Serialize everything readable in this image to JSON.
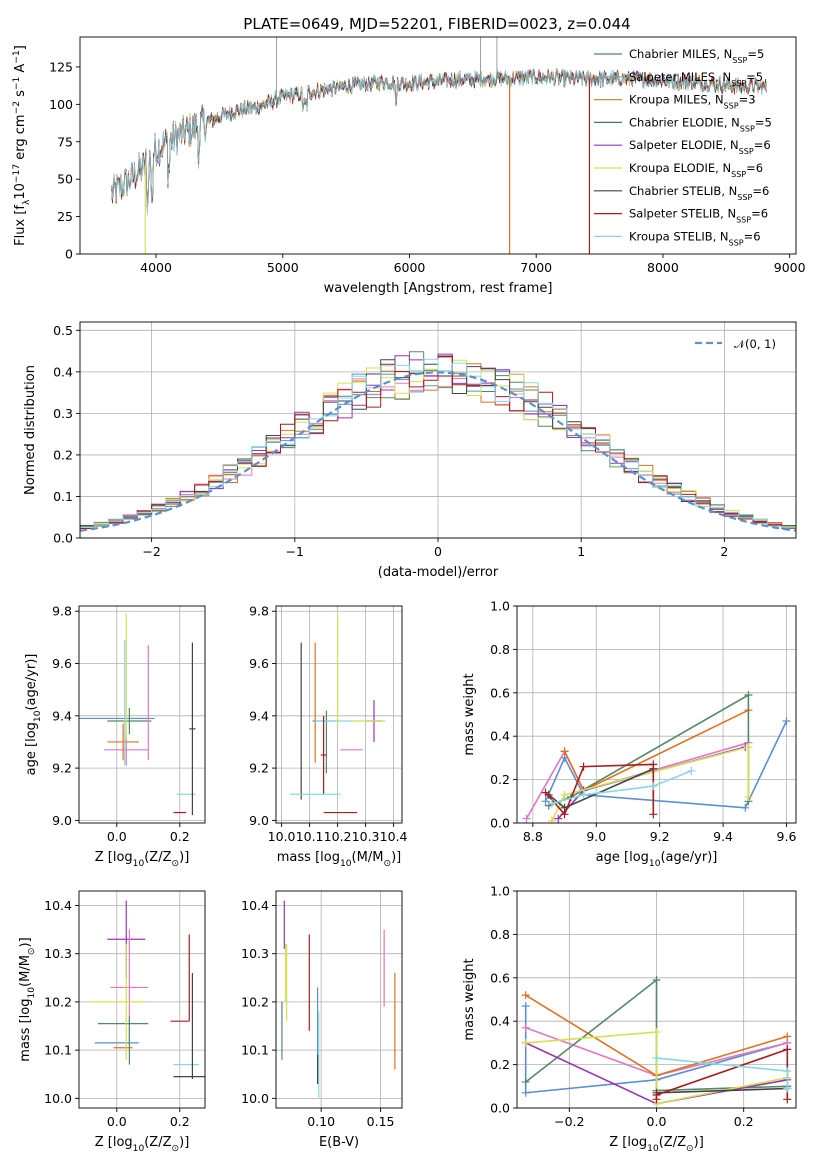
{
  "figure": {
    "title": "PLATE=0649, MJD=52201, FIBERID=0023, z=0.044"
  },
  "colors": {
    "chabrier_miles": "#5b8fd0",
    "salpeter_miles": "#e377c2",
    "kroupa_miles": "#e07020",
    "chabrier_elodie": "#558866",
    "salpeter_elodie": "#9a35b5",
    "kroupa_elodie": "#d5e050",
    "chabrier_stelib": "#444444",
    "salpeter_stelib": "#aa1c1c",
    "kroupa_stelib": "#88d8e0"
  },
  "legend_spectrum": [
    {
      "text": "Chabrier MILES, N",
      "sub": "SSP",
      "tail": "=5",
      "color": "#558866"
    },
    {
      "text": "Salpeter MILES, N",
      "sub": "SSP",
      "tail": "=5",
      "color": "#999999"
    },
    {
      "text": "Kroupa MILES, N",
      "sub": "SSP",
      "tail": "=3",
      "color": "#cc8a3a"
    },
    {
      "text": "Chabrier ELODIE, N",
      "sub": "SSP",
      "tail": "=5",
      "color": "#44708a"
    },
    {
      "text": "Salpeter ELODIE, N",
      "sub": "SSP",
      "tail": "=6",
      "color": "#9a35b5"
    },
    {
      "text": "Kroupa ELODIE, N",
      "sub": "SSP",
      "tail": "=6",
      "color": "#d5e050"
    },
    {
      "text": "Chabrier STELIB, N",
      "sub": "SSP",
      "tail": "=6",
      "color": "#444444"
    },
    {
      "text": "Salpeter STELIB, N",
      "sub": "SSP",
      "tail": "=6",
      "color": "#aa1c1c"
    },
    {
      "text": "Kroupa STELIB, N",
      "sub": "SSP",
      "tail": "=6",
      "color": "#88d8e0"
    }
  ],
  "chart_data": [
    {
      "id": "spectrum",
      "type": "line",
      "xlabel": "wavelength [Angstrom, rest frame]",
      "ylabel_main": "Flux [f",
      "ylabel_sub": "λ",
      "ylabel_mid": "10",
      "ylabel_sup1": "−17",
      "ylabel_mid2": " erg cm",
      "ylabel_sup2": "−2",
      "ylabel_mid3": " s",
      "ylabel_sup3": "−1",
      "ylabel_mid4": " A",
      "ylabel_sup4": "−1",
      "ylabel_end": "]",
      "xlim": [
        3400,
        9050
      ],
      "ylim": [
        0,
        145
      ],
      "xticks": [
        4000,
        5000,
        6000,
        7000,
        8000,
        9000
      ],
      "yticks": [
        0,
        25,
        50,
        75,
        100,
        125
      ],
      "continuum": [
        [
          3650,
          40
        ],
        [
          3800,
          50
        ],
        [
          3900,
          58
        ],
        [
          4000,
          70
        ],
        [
          4200,
          80
        ],
        [
          4400,
          88
        ],
        [
          4600,
          95
        ],
        [
          4800,
          98
        ],
        [
          5000,
          105
        ],
        [
          5200,
          108
        ],
        [
          5500,
          112
        ],
        [
          5800,
          115
        ],
        [
          6000,
          114
        ],
        [
          6300,
          116
        ],
        [
          6600,
          117
        ],
        [
          7000,
          118
        ],
        [
          7400,
          117
        ],
        [
          7800,
          117
        ],
        [
          8200,
          115
        ],
        [
          8600,
          112
        ],
        [
          8800,
          112
        ]
      ],
      "drops": [
        [
          3915,
          0
        ],
        [
          6790,
          0
        ],
        [
          7420,
          0
        ]
      ],
      "spikes": [
        [
          4950,
          145
        ],
        [
          6560,
          145
        ],
        [
          6690,
          145
        ]
      ]
    },
    {
      "id": "residuals",
      "type": "histogram",
      "xlabel": "(data-model)/error",
      "ylabel": "Normed distribution",
      "xlim": [
        -2.5,
        2.5
      ],
      "ylim": [
        0,
        0.52
      ],
      "xticks": [
        -2,
        -1,
        0,
        1,
        2
      ],
      "yticks": [
        0.0,
        0.1,
        0.2,
        0.3,
        0.4,
        0.5
      ],
      "legend": "𝒩(0, 1)",
      "bin_width": 0.1
    },
    {
      "id": "age_vs_Z",
      "type": "errorbar",
      "xlabel": "Z [log",
      "xlabel_sub": "10",
      "xlabel_end": "(Z/Z",
      "xlabel_sub2": "⊙",
      "xlabel_end2": ")]",
      "ylabel": "age  [log",
      "ylabel_sub": "10",
      "ylabel_end": "(age/yr)]",
      "xlim": [
        -0.12,
        0.28
      ],
      "ylim": [
        8.99,
        9.82
      ],
      "xticks": [
        0.0,
        0.2
      ],
      "xticklabels": [
        "0.0",
        "0.2"
      ],
      "yticks": [
        9.0,
        9.2,
        9.4,
        9.6,
        9.8
      ],
      "points": [
        {
          "x": 0.0,
          "xerr": 0.12,
          "y": 9.39,
          "yerr": 0.0,
          "color": "#5b8fd0"
        },
        {
          "x": 0.03,
          "xerr": 0.07,
          "y": 9.27,
          "yerr": 0.06,
          "color": "#e377c2"
        },
        {
          "x": 0.02,
          "xerr": 0.05,
          "y": 9.3,
          "yerr": 0.07,
          "color": "#e07020"
        },
        {
          "x": 0.04,
          "xerr": 0.07,
          "y": 9.38,
          "yerr": 0.05,
          "color": "#558866"
        },
        {
          "x": 0.1,
          "xerr": 0.0,
          "y": 9.45,
          "yerr": 0.22,
          "color": "#e377c2"
        },
        {
          "x": 0.03,
          "xerr": 0.0,
          "y": 9.55,
          "yerr": 0.24,
          "color": "#d5e050"
        },
        {
          "x": 0.22,
          "xerr": 0.03,
          "y": 9.1,
          "yerr": 0.0,
          "color": "#88d8e0"
        },
        {
          "x": 0.24,
          "xerr": 0.01,
          "y": 9.35,
          "yerr": 0.33,
          "color": "#444444"
        },
        {
          "x": 0.2,
          "xerr": 0.02,
          "y": 9.03,
          "yerr": 0.0,
          "color": "#aa1c1c"
        },
        {
          "x": 0.025,
          "xerr": 0.0,
          "y": 9.45,
          "yerr": 0.24,
          "color": "#88d8e0"
        }
      ]
    },
    {
      "id": "age_vs_mass",
      "type": "errorbar",
      "xlabel": "mass [log",
      "xlabel_sub": "10",
      "xlabel_end": "(M/M",
      "xlabel_sub2": "⊙",
      "xlabel_end2": ")]",
      "xlim": [
        9.98,
        10.43
      ],
      "ylim": [
        8.99,
        9.82
      ],
      "xticks": [
        10.0,
        10.1,
        10.2,
        10.3,
        10.4
      ],
      "xticklabels": [
        "10.0",
        "10.1",
        "10.2",
        "10.3",
        "10.4"
      ],
      "yticks": [
        9.0,
        9.2,
        9.4,
        9.6,
        9.8
      ],
      "points": [
        {
          "x": 10.07,
          "xerr": 0.0,
          "y": 9.38,
          "yerr": 0.3,
          "color": "#444444"
        },
        {
          "x": 10.12,
          "xerr": 0.0,
          "y": 9.45,
          "yerr": 0.23,
          "color": "#e07020"
        },
        {
          "x": 10.16,
          "xerr": 0.0,
          "y": 9.3,
          "yerr": 0.12,
          "color": "#558866"
        },
        {
          "x": 10.15,
          "xerr": 0.04,
          "y": 9.38,
          "yerr": 0.0,
          "color": "#5b8fd0"
        },
        {
          "x": 10.2,
          "xerr": 0.0,
          "y": 9.58,
          "yerr": 0.22,
          "color": "#d5e050"
        },
        {
          "x": 10.33,
          "xerr": 0.03,
          "y": 9.38,
          "yerr": 0.08,
          "color": "#9a35b5"
        },
        {
          "x": 10.25,
          "xerr": 0.04,
          "y": 9.27,
          "yerr": 0.0,
          "color": "#e377c2"
        },
        {
          "x": 10.19,
          "xerr": 0.07,
          "y": 9.38,
          "yerr": 0.0,
          "color": "#88d8e0"
        },
        {
          "x": 10.21,
          "xerr": 0.06,
          "y": 9.03,
          "yerr": 0.0,
          "color": "#aa1c1c"
        },
        {
          "x": 10.15,
          "xerr": 0.01,
          "y": 9.25,
          "yerr": 0.15,
          "color": "#aa1c1c"
        },
        {
          "x": 10.12,
          "xerr": 0.09,
          "y": 9.1,
          "yerr": 0.0,
          "color": "#88d8e0"
        },
        {
          "x": 10.31,
          "xerr": 0.06,
          "y": 9.38,
          "yerr": 0.0,
          "color": "#d5e050"
        }
      ]
    },
    {
      "id": "weight_vs_age",
      "type": "line",
      "xlabel": "age  [log",
      "xlabel_sub": "10",
      "xlabel_end": "(age/yr)]",
      "ylabel": "mass weight",
      "xlim": [
        8.75,
        9.63
      ],
      "ylim": [
        0,
        1.0
      ],
      "xticks": [
        8.8,
        9.0,
        9.2,
        9.4,
        9.6
      ],
      "xticklabels": [
        "8.8",
        "9.0",
        "9.2",
        "9.4",
        "9.6"
      ],
      "yticks": [
        0.0,
        0.2,
        0.4,
        0.6,
        0.8,
        1.0
      ],
      "yticklabels": [
        "0.0",
        "0.2",
        "0.4",
        "0.6",
        "0.8",
        "1.0"
      ],
      "series": [
        {
          "color": "#5b8fd0",
          "x": [
            8.84,
            8.9,
            8.96,
            9.47,
            9.6
          ],
          "y": [
            0.1,
            0.3,
            0.13,
            0.07,
            0.47
          ]
        },
        {
          "color": "#e377c2",
          "x": [
            8.78,
            8.9,
            8.96,
            9.48
          ],
          "y": [
            0.02,
            0.33,
            0.15,
            0.37
          ]
        },
        {
          "color": "#e07020",
          "x": [
            8.9,
            8.96,
            9.48
          ],
          "y": [
            0.33,
            0.15,
            0.52
          ]
        },
        {
          "color": "#558866",
          "x": [
            8.85,
            8.92,
            9.48,
            9.48
          ],
          "y": [
            0.08,
            0.12,
            0.59,
            0.1
          ]
        },
        {
          "color": "#9a35b5",
          "x": [
            8.88,
            8.96,
            9.47
          ],
          "y": [
            0.02,
            0.15,
            0.35
          ]
        },
        {
          "color": "#d5e050",
          "x": [
            8.86,
            8.9,
            9.48,
            9.48
          ],
          "y": [
            0.01,
            0.13,
            0.35,
            0.12
          ]
        },
        {
          "color": "#444444",
          "x": [
            8.85,
            8.9,
            9.18
          ],
          "y": [
            0.13,
            0.07,
            0.25
          ]
        },
        {
          "color": "#aa1c1c",
          "x": [
            8.84,
            8.9,
            8.96,
            9.18,
            9.18
          ],
          "y": [
            0.14,
            0.04,
            0.26,
            0.27,
            0.04
          ]
        },
        {
          "color": "#88d8e0",
          "x": [
            8.86,
            8.96,
            9.18,
            9.3
          ],
          "y": [
            0.09,
            0.13,
            0.17,
            0.24
          ]
        }
      ]
    },
    {
      "id": "mass_vs_Z",
      "type": "errorbar",
      "xlabel": "Z [log",
      "xlabel_sub": "10",
      "xlabel_end": "(Z/Z",
      "xlabel_sub2": "⊙",
      "xlabel_end2": ")]",
      "ylabel": "mass [log",
      "ylabel_sub": "10",
      "ylabel_end": "(M/M",
      "ylabel_sub2": "⊙",
      "ylabel_end2": ")]",
      "xlim": [
        -0.12,
        0.28
      ],
      "ylim": [
        9.98,
        10.43
      ],
      "xticks": [
        0.0,
        0.2
      ],
      "xticklabels": [
        "0.0",
        "0.2"
      ],
      "yticks": [
        10.0,
        10.1,
        10.2,
        10.3,
        10.4
      ],
      "yticklabels": [
        "10.0",
        "10.1",
        "10.2",
        "10.3",
        "10.4"
      ],
      "points": [
        {
          "x": 0.0,
          "xerr": 0.07,
          "y": 10.115,
          "yerr": 0.0,
          "color": "#5b8fd0"
        },
        {
          "x": 0.03,
          "xerr": 0.06,
          "y": 10.33,
          "yerr": 0.08,
          "color": "#9a35b5"
        },
        {
          "x": 0.04,
          "xerr": 0.06,
          "y": 10.23,
          "yerr": 0.12,
          "color": "#e377c2"
        },
        {
          "x": 0.0,
          "xerr": 0.09,
          "y": 10.2,
          "yerr": 0.0,
          "color": "#d5e050"
        },
        {
          "x": 0.02,
          "xerr": 0.08,
          "y": 10.155,
          "yerr": 0.0,
          "color": "#558866"
        },
        {
          "x": 0.02,
          "xerr": 0.03,
          "y": 10.105,
          "yerr": 0.0,
          "color": "#e07020"
        },
        {
          "x": 0.03,
          "xerr": 0.0,
          "y": 10.2,
          "yerr": 0.12,
          "color": "#d5e050"
        },
        {
          "x": 0.04,
          "xerr": 0.0,
          "y": 10.12,
          "yerr": 0.05,
          "color": "#558866"
        },
        {
          "x": 0.2,
          "xerr": 0.03,
          "y": 10.16,
          "yerr": 0.0,
          "color": "#aa1c1c"
        },
        {
          "x": 0.23,
          "xerr": 0.0,
          "y": 10.25,
          "yerr": 0.09,
          "color": "#aa1c1c"
        },
        {
          "x": 0.23,
          "xerr": 0.05,
          "y": 10.045,
          "yerr": 0.0,
          "color": "#444444"
        },
        {
          "x": 0.22,
          "xerr": 0.04,
          "y": 10.07,
          "yerr": 0.0,
          "color": "#88d8e0"
        },
        {
          "x": 0.24,
          "xerr": 0.0,
          "y": 10.15,
          "yerr": 0.11,
          "color": "#444444"
        }
      ]
    },
    {
      "id": "mass_vs_ebv",
      "type": "errorbar",
      "xlabel": "E(B-V)",
      "xlim": [
        0.062,
        0.168
      ],
      "ylim": [
        9.98,
        10.43
      ],
      "xticks": [
        0.1,
        0.15
      ],
      "xticklabels": [
        "0.10",
        "0.15"
      ],
      "yticks": [
        10.0,
        10.1,
        10.2,
        10.3,
        10.4
      ],
      "yticklabels": [
        "10.0",
        "10.1",
        "10.2",
        "10.3",
        "10.4"
      ],
      "points": [
        {
          "x": 0.067,
          "xerr": 0.0,
          "y": 10.14,
          "yerr": 0.06,
          "color": "#558866"
        },
        {
          "x": 0.069,
          "xerr": 0.0,
          "y": 10.36,
          "yerr": 0.05,
          "color": "#9a35b5"
        },
        {
          "x": 0.07,
          "xerr": 0.0,
          "y": 10.26,
          "yerr": 0.06,
          "color": "#d5e050"
        },
        {
          "x": 0.071,
          "xerr": 0.0,
          "y": 10.24,
          "yerr": 0.08,
          "color": "#d5e050"
        },
        {
          "x": 0.09,
          "xerr": 0.0,
          "y": 10.24,
          "yerr": 0.1,
          "color": "#aa1c1c"
        },
        {
          "x": 0.097,
          "xerr": 0.0,
          "y": 10.13,
          "yerr": 0.1,
          "color": "#5b8fd0"
        },
        {
          "x": 0.098,
          "xerr": 0.0,
          "y": 10.09,
          "yerr": 0.09,
          "color": "#88d8e0"
        },
        {
          "x": 0.097,
          "xerr": 0.0,
          "y": 10.06,
          "yerr": 0.03,
          "color": "#444444"
        },
        {
          "x": 0.153,
          "xerr": 0.0,
          "y": 10.27,
          "yerr": 0.08,
          "color": "#e377c2"
        },
        {
          "x": 0.162,
          "xerr": 0.0,
          "y": 10.16,
          "yerr": 0.1,
          "color": "#e07020"
        }
      ]
    },
    {
      "id": "weight_vs_Z",
      "type": "line",
      "xlabel": "Z [log",
      "xlabel_sub": "10",
      "xlabel_end": "(Z/Z",
      "xlabel_sub2": "⊙",
      "xlabel_end2": ")]",
      "ylabel": "mass weight",
      "xlim": [
        -0.32,
        0.32
      ],
      "ylim": [
        0,
        1.0
      ],
      "xticks": [
        -0.2,
        0.0,
        0.2
      ],
      "xticklabels": [
        "−0.2",
        "0.0",
        "0.2"
      ],
      "yticks": [
        0.0,
        0.2,
        0.4,
        0.6,
        0.8,
        1.0
      ],
      "yticklabels": [
        "0.0",
        "0.2",
        "0.4",
        "0.6",
        "0.8",
        "1.0"
      ],
      "series": [
        {
          "color": "#5b8fd0",
          "x": [
            -0.3,
            -0.3,
            0.0,
            0.3,
            0.3
          ],
          "y": [
            0.47,
            0.07,
            0.13,
            0.3,
            0.1
          ]
        },
        {
          "color": "#e377c2",
          "x": [
            -0.3,
            0.0,
            0.3
          ],
          "y": [
            0.37,
            0.15,
            0.3
          ]
        },
        {
          "color": "#e07020",
          "x": [
            -0.3,
            0.0,
            0.3
          ],
          "y": [
            0.52,
            0.15,
            0.33
          ]
        },
        {
          "color": "#558866",
          "x": [
            -0.3,
            0.0,
            0.0,
            0.3
          ],
          "y": [
            0.12,
            0.59,
            0.08,
            0.1
          ]
        },
        {
          "color": "#9a35b5",
          "x": [
            -0.3,
            0.0,
            0.3
          ],
          "y": [
            0.3,
            0.02,
            0.13
          ]
        },
        {
          "color": "#d5e050",
          "x": [
            -0.3,
            0.0,
            0.0,
            0.3
          ],
          "y": [
            0.3,
            0.35,
            0.02,
            0.14
          ]
        },
        {
          "color": "#444444",
          "x": [
            0.0,
            0.3
          ],
          "y": [
            0.07,
            0.09
          ]
        },
        {
          "color": "#aa1c1c",
          "x": [
            0.0,
            0.0,
            0.3,
            0.3
          ],
          "y": [
            0.04,
            0.06,
            0.27,
            0.04
          ]
        },
        {
          "color": "#88d8e0",
          "x": [
            0.0,
            0.3,
            0.3
          ],
          "y": [
            0.23,
            0.17,
            0.09
          ]
        }
      ]
    }
  ]
}
